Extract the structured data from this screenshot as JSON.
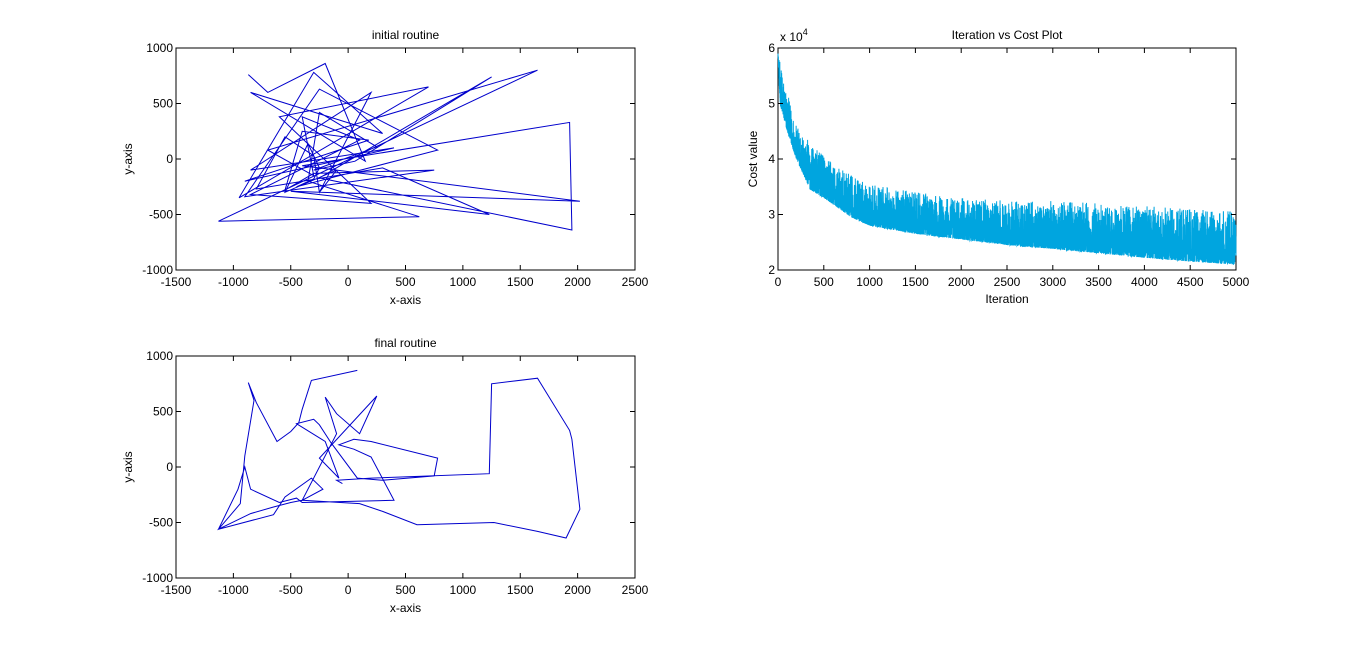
{
  "figure": {
    "background": "#ffffff"
  },
  "chart_data": [
    {
      "id": "initial",
      "type": "line",
      "title": "initial routine",
      "xlabel": "x-axis",
      "ylabel": "y-axis",
      "xlim": [
        -1500,
        2500
      ],
      "ylim": [
        -1000,
        1000
      ],
      "xticks": [
        -1500,
        -1000,
        -500,
        0,
        500,
        1000,
        1500,
        2000,
        2500
      ],
      "yticks": [
        -1000,
        -500,
        0,
        500,
        1000
      ],
      "grid": false,
      "color": "#0000cc",
      "series": [
        {
          "x": [
            -870,
            -700,
            -200,
            150,
            -850,
            300,
            -300,
            -950,
            700,
            -600,
            200,
            -850,
            100,
            -400,
            -300,
            -700,
            1650,
            -1130,
            620,
            -350,
            -250,
            250,
            -300,
            60,
            1250,
            -250,
            1950,
            1930,
            -400,
            2020,
            -500,
            1230,
            300,
            -800,
            -550,
            -300,
            -250,
            200,
            -850,
            400,
            -900,
            180,
            -400,
            -550,
            -300,
            750,
            -900,
            -250,
            780,
            -450,
            -300,
            -250,
            -350,
            -550,
            -100,
            -250
          ],
          "y": [
            760,
            600,
            860,
            -20,
            600,
            230,
            780,
            -350,
            650,
            380,
            -400,
            -320,
            170,
            380,
            -150,
            80,
            800,
            -560,
            -520,
            -200,
            420,
            110,
            -100,
            -20,
            740,
            -170,
            -640,
            330,
            -60,
            -380,
            -290,
            -500,
            -80,
            -270,
            200,
            30,
            -300,
            600,
            -100,
            100,
            -200,
            170,
            250,
            -280,
            -130,
            -100,
            -340,
            630,
            80,
            -250,
            -180,
            -80,
            140,
            -300,
            -100,
            -300
          ]
        }
      ]
    },
    {
      "id": "cost",
      "type": "line",
      "title": "Iteration vs Cost Plot",
      "xlabel": "Iteration",
      "ylabel": "Cost value",
      "y_exponent": "x 10",
      "y_exponent_power": "4",
      "xlim": [
        0,
        5000
      ],
      "ylim": [
        2,
        6
      ],
      "xticks": [
        0,
        500,
        1000,
        1500,
        2000,
        2500,
        3000,
        3500,
        4000,
        4500,
        5000
      ],
      "yticks": [
        2,
        3,
        4,
        5,
        6
      ],
      "grid": false,
      "color": "#00a5df",
      "series": [
        {
          "baseline_x": [
            0,
            20,
            100,
            200,
            350,
            500,
            800,
            1000,
            1500,
            2000,
            2500,
            3000,
            3500,
            4000,
            4500,
            5000
          ],
          "baseline_y": [
            5.9,
            5.0,
            4.5,
            4.0,
            3.45,
            3.3,
            2.95,
            2.8,
            2.65,
            2.55,
            2.45,
            2.38,
            2.3,
            2.22,
            2.15,
            2.1
          ],
          "upper_x": [
            0,
            100,
            200,
            400,
            700,
            1000,
            1500,
            2000,
            2500,
            3000,
            3500,
            4000,
            4500,
            5000
          ],
          "upper_y": [
            5.9,
            5.2,
            4.6,
            4.2,
            3.8,
            3.55,
            3.4,
            3.3,
            3.25,
            3.25,
            3.2,
            3.15,
            3.1,
            3.05
          ]
        }
      ]
    },
    {
      "id": "final",
      "type": "line",
      "title": "final routine",
      "xlabel": "x-axis",
      "ylabel": "y-axis",
      "xlim": [
        -1500,
        2500
      ],
      "ylim": [
        -1000,
        1000
      ],
      "xticks": [
        -1500,
        -1000,
        -500,
        0,
        500,
        1000,
        1500,
        2000,
        2500
      ],
      "yticks": [
        -1000,
        -500,
        0,
        500,
        1000
      ],
      "grid": false,
      "color": "#0000cc",
      "series": [
        {
          "x": [
            80,
            -320,
            -400,
            -430,
            -500,
            -620,
            -800,
            -870,
            -820,
            -900,
            -940,
            -1130,
            -650,
            -550,
            -320,
            -220,
            -400,
            -100,
            -200,
            -100,
            100,
            250,
            -250,
            -80,
            -200,
            -450,
            -300,
            -250,
            -150,
            80,
            300,
            750,
            780,
            200,
            50,
            -80,
            50,
            200,
            400,
            -400,
            -450,
            -600,
            -850,
            -900,
            -960,
            -1130,
            -850,
            -650,
            -500,
            -450,
            -400,
            100,
            300,
            600,
            1270,
            1650,
            1900,
            2020,
            1950,
            1930,
            1650,
            1250,
            1230,
            200,
            -100,
            -50
          ],
          "y": [
            870,
            780,
            520,
            400,
            320,
            230,
            580,
            760,
            600,
            100,
            -330,
            -560,
            -430,
            -270,
            -100,
            -200,
            -300,
            300,
            630,
            480,
            300,
            640,
            80,
            -100,
            230,
            390,
            430,
            380,
            220,
            -100,
            -120,
            -80,
            80,
            230,
            250,
            200,
            160,
            90,
            -300,
            -320,
            -280,
            -320,
            -200,
            0,
            -200,
            -560,
            -420,
            -360,
            -320,
            -310,
            -300,
            -330,
            -400,
            -520,
            -500,
            -580,
            -640,
            -380,
            250,
            330,
            800,
            750,
            -60,
            -100,
            -120,
            -150
          ]
        }
      ]
    }
  ]
}
